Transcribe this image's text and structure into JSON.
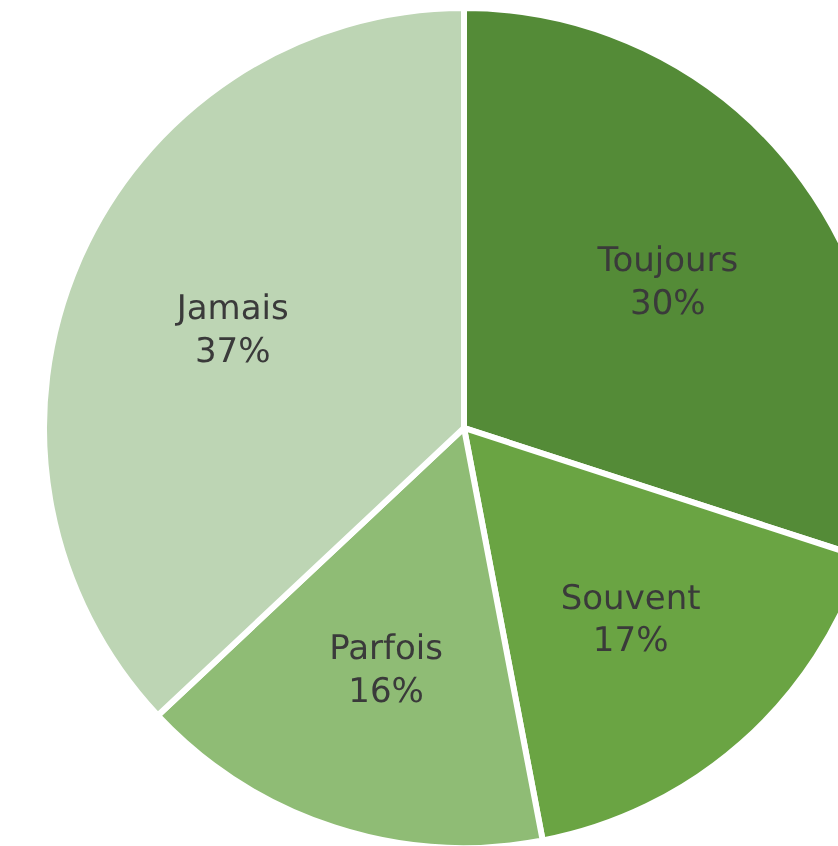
{
  "chart_data": {
    "type": "pie",
    "categories": [
      "Toujours",
      "Souvent",
      "Parfois",
      "Jamais"
    ],
    "values": [
      30,
      17,
      16,
      37
    ],
    "colors": [
      "#548b37",
      "#6aa443",
      "#8fbc75",
      "#bdd5b4"
    ],
    "value_labels": [
      "30%",
      "17%",
      "16%",
      "37%"
    ]
  }
}
